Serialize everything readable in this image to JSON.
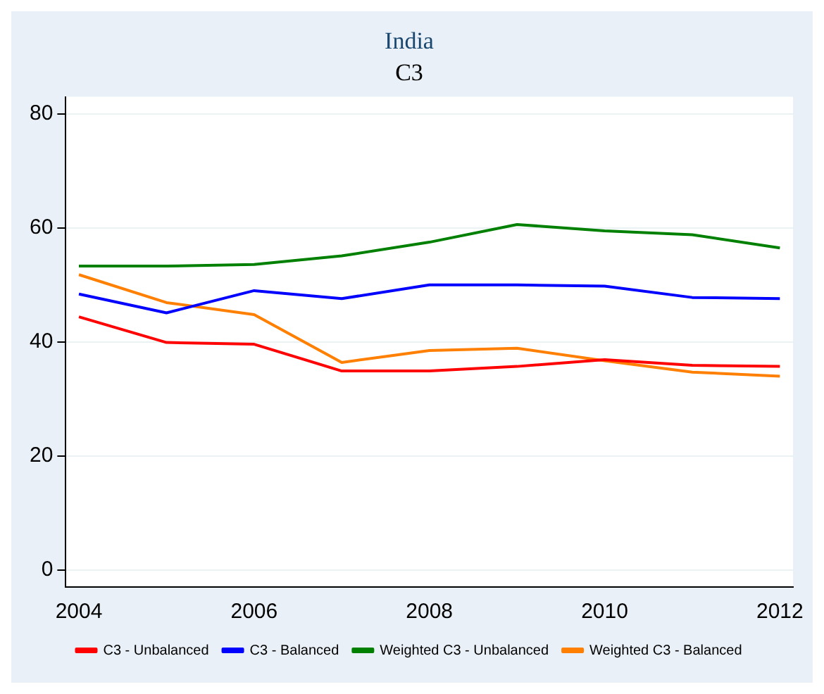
{
  "chart_data": {
    "type": "line",
    "title": "India",
    "subtitle": "C3",
    "x": [
      2004,
      2005,
      2006,
      2007,
      2008,
      2009,
      2010,
      2011,
      2012
    ],
    "series": [
      {
        "name": "C3 - Unbalanced",
        "color": "#ff0000",
        "values": [
          44.4,
          39.9,
          39.6,
          34.9,
          34.9,
          35.7,
          36.9,
          35.9,
          35.7
        ]
      },
      {
        "name": "C3 - Balanced",
        "color": "#0000ff",
        "values": [
          48.4,
          45.1,
          49.0,
          47.6,
          50.0,
          50.0,
          49.8,
          47.8,
          47.6
        ]
      },
      {
        "name": "Weighted C3 - Unbalanced",
        "color": "#008000",
        "values": [
          53.3,
          53.3,
          53.6,
          55.1,
          57.5,
          60.6,
          59.5,
          58.8,
          56.5
        ]
      },
      {
        "name": "Weighted C3 - Balanced",
        "color": "#ff7f00",
        "values": [
          51.8,
          46.9,
          44.8,
          36.4,
          38.5,
          38.9,
          36.7,
          34.7,
          34.0
        ]
      }
    ],
    "xlim": [
      2003.85,
      2012.15
    ],
    "xticks": [
      2004,
      2006,
      2008,
      2010,
      2012
    ],
    "ylim": [
      -3,
      83
    ],
    "yticks": [
      0,
      20,
      40,
      60,
      80
    ],
    "grid": "y",
    "legend": "bottom",
    "marker": "none",
    "line_style": "solid"
  }
}
